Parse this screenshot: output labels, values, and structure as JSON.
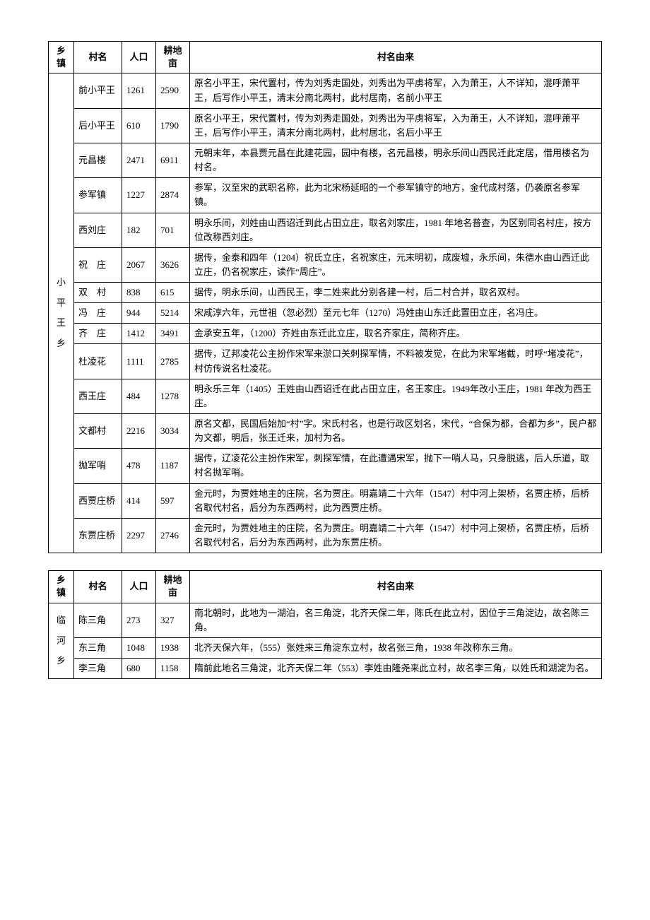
{
  "headers": {
    "town": "乡镇",
    "village": "村名",
    "population": "人口",
    "land": "耕地亩",
    "origin": "村名由来"
  },
  "table1": {
    "town_vertical": [
      "小",
      "平",
      "王",
      "乡"
    ],
    "rows": [
      {
        "village": "前小平王",
        "pop": "1261",
        "land": "2590",
        "origin": "原名小平王，宋代置村，传为刘秀走国处，刘秀出为平虏将军，入为萧王，人不详知，混呼萧平王，后写作小平王，清末分南北两村，此村居南，名前小平王"
      },
      {
        "village": "后小平王",
        "pop": "610",
        "land": "1790",
        "origin": "原名小平王，宋代置村，传为刘秀走国处，刘秀出为平虏将军，入为萧王，人不详知，混呼萧平王，后写作小平王，清末分南北两村，此村居北，名后小平王"
      },
      {
        "village": "元昌楼",
        "pop": "2471",
        "land": "6911",
        "origin": "元朝末年，本县贾元昌在此建花园，园中有楼，名元昌楼，明永乐间山西民迁此定居，借用楼名为村名。"
      },
      {
        "village": "参军镇",
        "pop": "1227",
        "land": "2874",
        "origin": "参军，汉至宋的武职名称，此为北宋杨延昭的一个参军镇守的地方，金代成村落，仍袭原名参军镇。"
      },
      {
        "village": "西刘庄",
        "pop": "182",
        "land": "701",
        "origin": "明永乐间，刘姓由山西诏迁到此占田立庄，取名刘家庄，1981 年地名普查，为区别同名村庄，按方位改称西刘庄。"
      },
      {
        "village": "祝　庄",
        "pop": "2067",
        "land": "3626",
        "origin": "据传，金泰和四年（1204）祝氏立庄，名祝家庄，元末明初，成废墟，永乐间，朱德水由山西迁此立庄，仍名祝家庄，读作“周庄”。"
      },
      {
        "village": "双　村",
        "pop": "838",
        "land": "615",
        "origin": "据传，明永乐间，山西民王，李二姓来此分别各建一村，后二村合并，取名双村。"
      },
      {
        "village": "冯　庄",
        "pop": "944",
        "land": "5214",
        "origin": "宋咸淳六年，元世祖（忽必烈）至元七年（1270）冯姓由山东迁此置田立庄，名冯庄。"
      },
      {
        "village": "齐　庄",
        "pop": "1412",
        "land": "3491",
        "origin": "金承安五年，（1200）齐姓由东迁此立庄，取名齐家庄，简称齐庄。"
      },
      {
        "village": "杜凌花",
        "pop": "1111",
        "land": "2785",
        "origin": "据传，辽邦凌花公主扮作宋军来淤口关刺探军情，不料被发觉，在此为宋军堵截，时呼“堵凌花”，村仿传说名杜凌花。"
      },
      {
        "village": "西王庄",
        "pop": "484",
        "land": "1278",
        "origin": "明永乐三年（1405）王姓由山西诏迁在此占田立庄，名王家庄。1949年改小王庄，1981 年改为西王庄。"
      },
      {
        "village": "文都村",
        "pop": "2216",
        "land": "3034",
        "origin": "原名文都，民国后始加“村”字。宋氏村名，也是行政区划名，宋代，“合保为都，合都为乡”，民户都为文都，明后，张王迁来，加村为名。"
      },
      {
        "village": "抛军哨",
        "pop": "478",
        "land": "1187",
        "origin": "据传，辽凌花公主扮作宋军，刺探军情，在此遭遇宋军，抛下一哨人马，只身脱逃，后人乐道，取村名抛军哨。"
      },
      {
        "village": "西贾庄桥",
        "pop": "414",
        "land": "597",
        "origin": "金元时，为贾姓地主的庄院，名为贾庄。明嘉靖二十六年（1547）村中河上架桥，名贾庄桥，后桥名取代村名，后分为东西两村，此为西贾庄桥。"
      },
      {
        "village": "东贾庄桥",
        "pop": "2297",
        "land": "2746",
        "origin": "金元时，为贾姓地主的庄院，名为贾庄。明嘉靖二十六年（1547）村中河上架桥，名贾庄桥，后桥名取代村名，后分为东西两村，此为东贾庄桥。"
      }
    ]
  },
  "table2": {
    "town_vertical": [
      "临",
      "河",
      "乡"
    ],
    "rows": [
      {
        "village": "陈三角",
        "pop": "273",
        "land": "327",
        "origin": "南北朝时，此地为一湖泊，名三角淀，北齐天保二年，陈氏在此立村，因位于三角淀边，故名陈三角。"
      },
      {
        "village": "东三角",
        "pop": "1048",
        "land": "1938",
        "origin": "北齐天保六年，（555）张姓来三角淀东立村，故名张三角，1938 年改称东三角。"
      },
      {
        "village": "李三角",
        "pop": "680",
        "land": "1158",
        "origin": "隋前此地名三角淀，北齐天保二年（553）李姓由隆尧来此立村，故名李三角，以姓氏和湖淀为名。"
      }
    ]
  }
}
